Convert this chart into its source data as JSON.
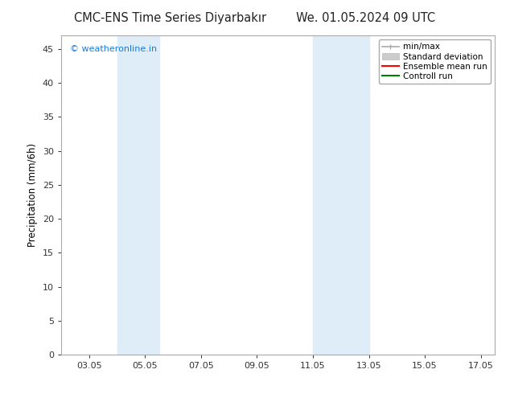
{
  "title_left": "CMC-ENS Time Series Diyarbakır",
  "title_right": "We. 01.05.2024 09 UTC",
  "ylabel": "Precipitation (mm/6h)",
  "watermark": "© weatheronline.in",
  "watermark_color": "#1a7ad4",
  "xlim": [
    2.05,
    17.55
  ],
  "ylim": [
    0,
    47
  ],
  "xticks": [
    3.05,
    5.05,
    7.05,
    9.05,
    11.05,
    13.05,
    15.05,
    17.05
  ],
  "xticklabels": [
    "03.05",
    "05.05",
    "07.05",
    "09.05",
    "11.05",
    "13.05",
    "15.05",
    "17.05"
  ],
  "yticks": [
    0,
    5,
    10,
    15,
    20,
    25,
    30,
    35,
    40,
    45
  ],
  "bg_color": "#ffffff",
  "plot_bg_color": "#ffffff",
  "shaded_regions": [
    {
      "xmin": 4.05,
      "xmax": 5.55,
      "color": "#deedf8"
    },
    {
      "xmin": 11.05,
      "xmax": 13.05,
      "color": "#deedf8"
    }
  ],
  "legend_entries": [
    {
      "label": "min/max",
      "color": "#aaaaaa",
      "lw": 1.2
    },
    {
      "label": "Standard deviation",
      "color": "#cccccc",
      "lw": 6
    },
    {
      "label": "Ensemble mean run",
      "color": "#ff0000",
      "lw": 1.5
    },
    {
      "label": "Controll run",
      "color": "#008000",
      "lw": 1.5
    }
  ],
  "spine_color": "#aaaaaa",
  "tick_color": "#333333",
  "title_fontsize": 10.5,
  "label_fontsize": 8.5,
  "tick_fontsize": 8,
  "legend_fontsize": 7.5
}
